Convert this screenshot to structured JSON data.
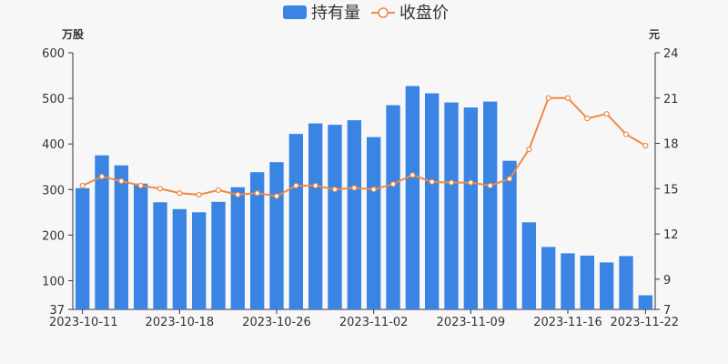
{
  "chart_data": {
    "type": "bar+line",
    "legend": [
      {
        "label": "持有量",
        "kind": "bar",
        "color": "#3a84e3"
      },
      {
        "label": "收盘价",
        "kind": "line",
        "color": "#ee8a45"
      }
    ],
    "left_axis": {
      "unit": "万股",
      "ticks": [
        37,
        100,
        200,
        300,
        400,
        500,
        600
      ],
      "range": [
        37,
        600
      ]
    },
    "right_axis": {
      "unit": "元",
      "ticks": [
        7,
        9,
        12,
        15,
        18,
        21,
        24
      ],
      "range": [
        7,
        24
      ]
    },
    "x_tick_labels": [
      {
        "index": 0,
        "label": "2023-10-11"
      },
      {
        "index": 5,
        "label": "2023-10-18"
      },
      {
        "index": 10,
        "label": "2023-10-26"
      },
      {
        "index": 15,
        "label": "2023-11-02"
      },
      {
        "index": 20,
        "label": "2023-11-09"
      },
      {
        "index": 25,
        "label": "2023-11-16"
      },
      {
        "index": 29,
        "label": "2023-11-22"
      }
    ],
    "holdings": [
      303,
      375,
      353,
      313,
      272,
      257,
      250,
      273,
      305,
      338,
      360,
      422,
      445,
      442,
      452,
      415,
      485,
      527,
      511,
      491,
      480,
      493,
      363,
      228,
      174,
      160,
      155,
      140,
      154,
      68
    ],
    "close_price": [
      15.2,
      15.8,
      15.5,
      15.2,
      15.0,
      14.7,
      14.6,
      14.9,
      14.6,
      14.7,
      14.5,
      15.2,
      15.2,
      14.95,
      15.05,
      14.95,
      15.3,
      15.9,
      15.45,
      15.4,
      15.4,
      15.2,
      15.65,
      17.6,
      21.0,
      21.0,
      19.65,
      19.95,
      18.6,
      17.85
    ]
  }
}
